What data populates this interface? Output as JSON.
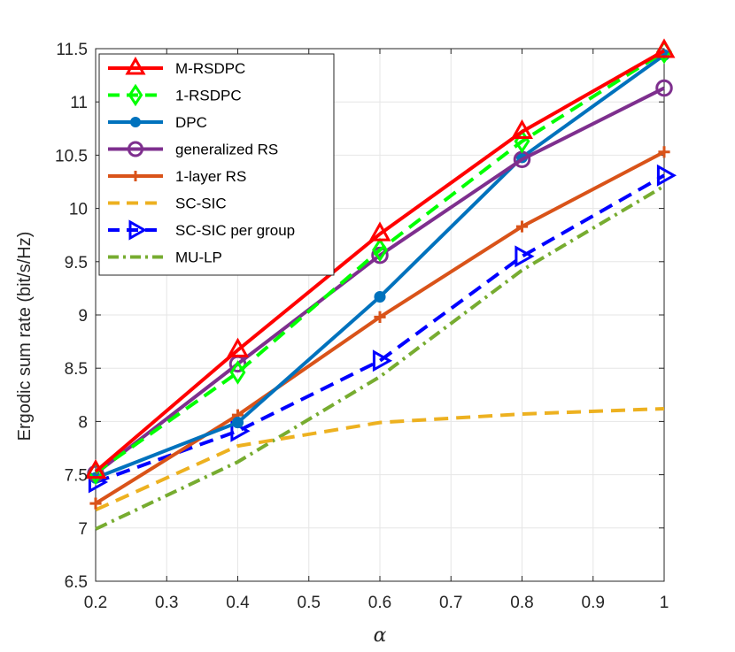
{
  "chart_data": {
    "type": "line",
    "title": "",
    "xlabel": "α",
    "ylabel": "Ergodic sum rate (bit/s/Hz)",
    "xlim": [
      0.2,
      1
    ],
    "ylim": [
      6.5,
      11.5
    ],
    "xticks": [
      0.2,
      0.3,
      0.4,
      0.5,
      0.6,
      0.7,
      0.8,
      0.9,
      1
    ],
    "xtick_labels": [
      "0.2",
      "0.3",
      "0.4",
      "0.5",
      "0.6",
      "0.7",
      "0.8",
      "0.9",
      "1"
    ],
    "yticks": [
      6.5,
      7,
      7.5,
      8,
      8.5,
      9,
      9.5,
      10,
      10.5,
      11,
      11.5
    ],
    "ytick_labels": [
      "6.5",
      "7",
      "7.5",
      "8",
      "8.5",
      "9",
      "9.5",
      "10",
      "10.5",
      "11",
      "11.5"
    ],
    "grid": true,
    "legend_position": "top-left",
    "x": [
      0.2,
      0.4,
      0.6,
      0.8,
      1.0
    ],
    "series": [
      {
        "name": "M-RSDPC",
        "values": [
          7.53,
          8.67,
          9.76,
          10.72,
          11.48
        ],
        "color": "#ff0000",
        "dash": "solid",
        "marker": "triangle"
      },
      {
        "name": "1-RSDPC",
        "values": [
          7.52,
          8.46,
          9.61,
          10.63,
          11.47
        ],
        "color": "#00ff00",
        "dash": "dashed",
        "marker": "diamond"
      },
      {
        "name": "DPC",
        "values": [
          7.47,
          7.99,
          9.17,
          10.48,
          11.44
        ],
        "color": "#0072bd",
        "dash": "solid",
        "marker": "dot"
      },
      {
        "name": "generalized RS",
        "values": [
          7.51,
          8.54,
          9.56,
          10.46,
          11.13
        ],
        "color": "#7e2f8e",
        "dash": "solid",
        "marker": "circle"
      },
      {
        "name": "1-layer RS",
        "values": [
          7.23,
          8.06,
          8.98,
          9.83,
          10.53
        ],
        "color": "#d95319",
        "dash": "solid",
        "marker": "plus"
      },
      {
        "name": "SC-SIC",
        "values": [
          7.17,
          7.77,
          7.99,
          8.07,
          8.12
        ],
        "color": "#edb120",
        "dash": "dashed",
        "marker": "none"
      },
      {
        "name": "SC-SIC per group",
        "values": [
          7.43,
          7.91,
          8.57,
          9.55,
          10.31
        ],
        "color": "#0000ff",
        "dash": "dashed",
        "marker": "triangle-right"
      },
      {
        "name": "MU-LP",
        "values": [
          6.99,
          7.62,
          8.42,
          9.42,
          10.21
        ],
        "color": "#77ac30",
        "dash": "dashdot",
        "marker": "none"
      }
    ]
  }
}
